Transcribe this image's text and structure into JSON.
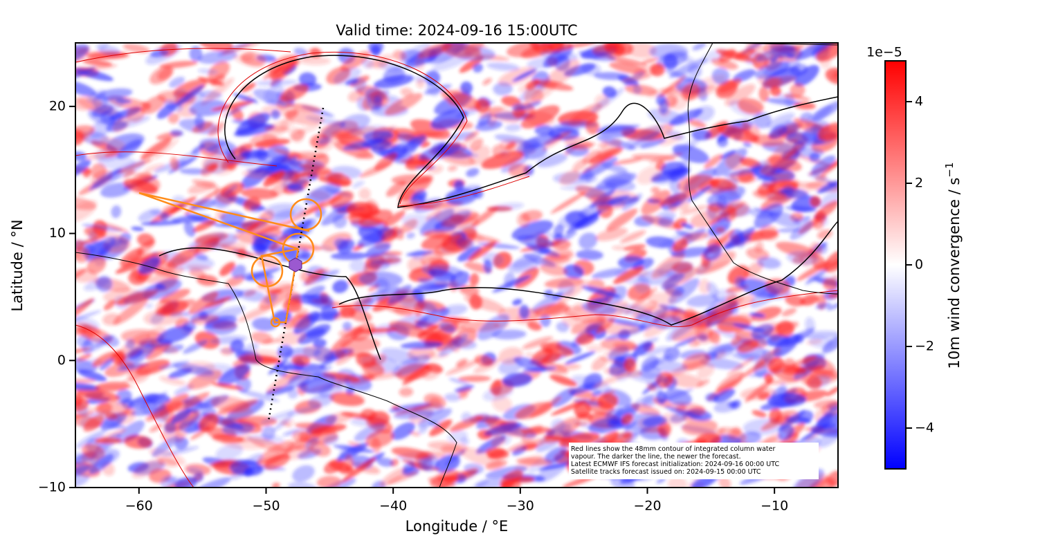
{
  "chart_data": {
    "type": "map",
    "title": "Valid time: 2024-09-16 15:00UTC",
    "xlabel": "Longitude / °E",
    "ylabel": "Latitude / °N",
    "xlim": [
      -65,
      -5
    ],
    "ylim": [
      -10,
      25
    ],
    "xticks": [
      {
        "value": -60,
        "label": "−60"
      },
      {
        "value": -50,
        "label": "−50"
      },
      {
        "value": -40,
        "label": "−40"
      },
      {
        "value": -30,
        "label": "−30"
      },
      {
        "value": -20,
        "label": "−20"
      },
      {
        "value": -10,
        "label": "−10"
      }
    ],
    "yticks": [
      {
        "value": -10,
        "label": "−10"
      },
      0,
      10,
      20
    ],
    "colorbar": {
      "label": "10m wind convergence / s",
      "label_exponent": "−1",
      "offset_text": "1e−5",
      "clim": [
        -5,
        5
      ],
      "ticks": [
        {
          "value": -4,
          "label": "−4"
        },
        {
          "value": -2,
          "label": "−2"
        },
        0,
        2,
        4
      ],
      "colormap": [
        "#0000ff",
        "#ffffff",
        "#ff0000"
      ]
    },
    "annotation": [
      "Red lines show the 48mm contour of integrated column water",
      "vapour. The darker the line, the newer the forecast.",
      "Latest ECMWF IFS forecast initialization: 2024-09-16 00:00 UTC",
      "Satellite tracks forecast issued on: 2024-09-15 00:00 UTC"
    ]
  }
}
